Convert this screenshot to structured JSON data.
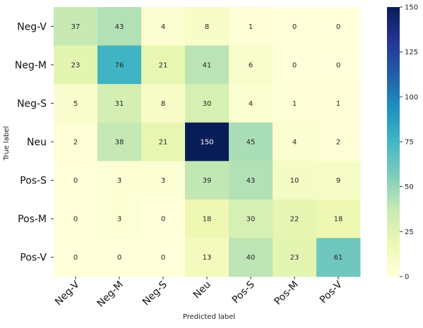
{
  "chart_data": {
    "type": "heatmap",
    "title": "",
    "xlabel": "Predicted label",
    "ylabel": "True label",
    "x_categories": [
      "Neg-V",
      "Neg-M",
      "Neg-S",
      "Neu",
      "Pos-S",
      "Pos-M",
      "Pos-V"
    ],
    "y_categories": [
      "Neg-V",
      "Neg-M",
      "Neg-S",
      "Neu",
      "Pos-S",
      "Pos-M",
      "Pos-V"
    ],
    "values": [
      [
        37,
        43,
        4,
        8,
        1,
        0,
        0
      ],
      [
        23,
        76,
        21,
        41,
        6,
        0,
        0
      ],
      [
        5,
        31,
        8,
        30,
        4,
        1,
        1
      ],
      [
        2,
        38,
        21,
        150,
        45,
        4,
        2
      ],
      [
        0,
        3,
        3,
        39,
        43,
        10,
        9
      ],
      [
        0,
        3,
        0,
        18,
        30,
        22,
        18
      ],
      [
        0,
        0,
        0,
        13,
        40,
        23,
        61
      ]
    ],
    "colorscale": "YlGnBu",
    "colorbar": {
      "range": [
        0,
        150
      ],
      "ticks": [
        "0",
        "25",
        "50",
        "75",
        "100",
        "125",
        "150"
      ]
    }
  }
}
